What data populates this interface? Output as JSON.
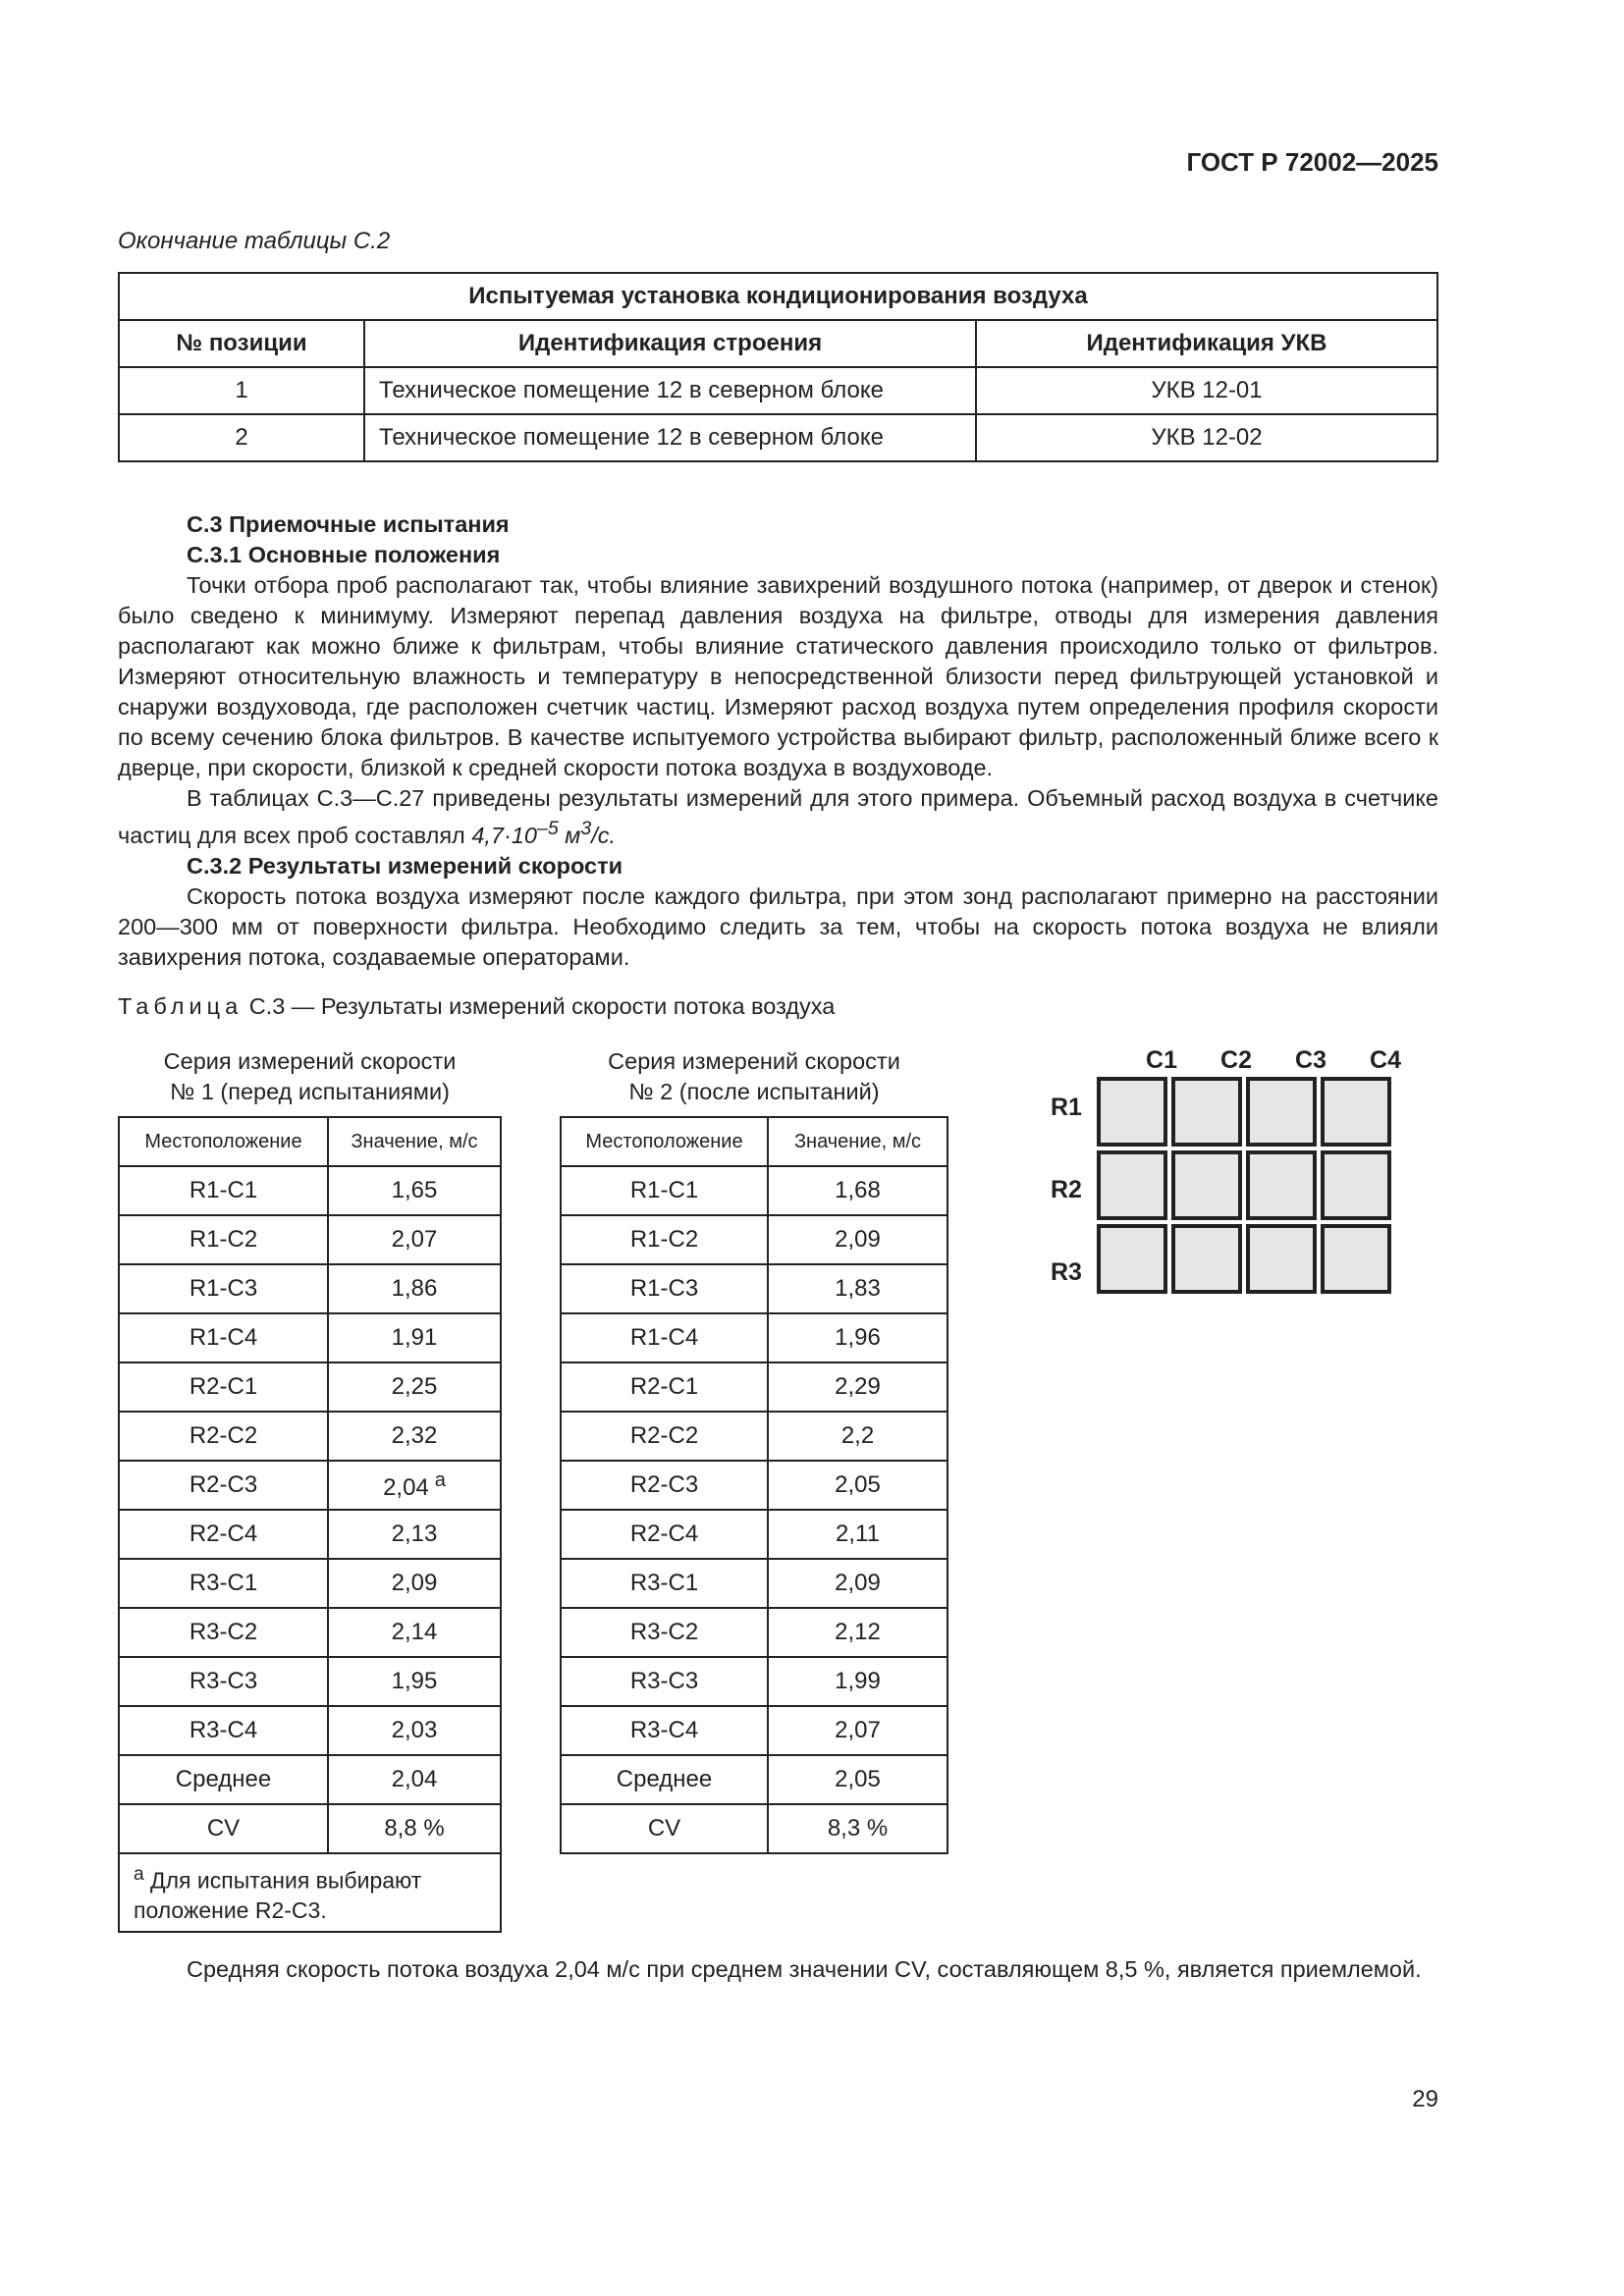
{
  "header": {
    "doc_code": "ГОСТ Р 72002—2025"
  },
  "table_c2": {
    "continuation": "Окончание таблицы С.2",
    "title": "Испытуемая установка кондиционирования воздуха",
    "columns": [
      "№ позиции",
      "Идентификация строения",
      "Идентификация УКВ"
    ],
    "rows": [
      [
        "1",
        "Техническое помещение 12 в северном блоке",
        "УКВ 12-01"
      ],
      [
        "2",
        "Техническое помещение 12 в северном блоке",
        "УКВ 12-02"
      ]
    ]
  },
  "section": {
    "h_c3": "С.3 Приемочные испытания",
    "h_c31": "С.3.1 Основные положения",
    "p1": "Точки отбора проб располагают так, чтобы влияние завихрений воздушного потока (например, от дверок и стенок) было сведено к минимуму. Измеряют перепад давления воздуха на фильтре, отводы для измерения дав­ления располагают как можно ближе к фильтрам, чтобы влияние статического давления происходило только от фильтров. Измеряют относительную влажность и температуру в непосредственной близости перед фильтрующей установкой и снаружи воздуховода, где расположен счетчик частиц. Измеряют расход воздуха путем определения профиля скорости по всему сечению блока фильтров. В качестве испытуемого устройства выбирают фильтр, рас­положенный ближе всего к дверце, при скорости, близкой к средней скорости потока воздуха в воздуховоде.",
    "p2": "В таблицах С.3—С.27 приведены результаты измерений для этого примера. Объемный расход воздуха в счетчике частиц для всех проб составлял",
    "p2_value": "4,7·10",
    "p2_exp": "–5",
    "p2_unit": "м",
    "p2_unit_exp": "3",
    "p2_unit_tail": "/с.",
    "h_c32": "С.3.2 Результаты измерений скорости",
    "p3": "Скорость потока воздуха измеряют после каждого фильтра, при этом зонд располагают примерно на рас­стоянии 200—300 мм от поверхности фильтра. Необходимо следить за тем, чтобы на скорость потока воздуха не влияли завихрения потока, создаваемые операторами."
  },
  "table_c3": {
    "caption_prefix": "Таблица",
    "caption_rest": "С.3 — Результаты измерений скорости потока воздуха",
    "series1": {
      "title1": "Серия измерений скорости",
      "title2": "№ 1 (перед испытаниями)",
      "columns": [
        "Местоположение",
        "Значение, м/с"
      ],
      "rows": [
        [
          "R1-C1",
          "1,65"
        ],
        [
          "R1-C2",
          "2,07"
        ],
        [
          "R1-C3",
          "1,86"
        ],
        [
          "R1-C4",
          "1,91"
        ],
        [
          "R2-C1",
          "2,25"
        ],
        [
          "R2-C2",
          "2,32"
        ],
        [
          "R2-C3",
          "2,04"
        ],
        [
          "R2-C4",
          "2,13"
        ],
        [
          "R3-C1",
          "2,09"
        ],
        [
          "R3-C2",
          "2,14"
        ],
        [
          "R3-C3",
          "1,95"
        ],
        [
          "R3-C4",
          "2,03"
        ],
        [
          "Среднее",
          "2,04"
        ],
        [
          "CV",
          "8,8 %"
        ]
      ],
      "footnote_mark": "a",
      "footnote": "Для испытания выбирают положение R2-C3."
    },
    "series2": {
      "title1": "Серия измерений скорости",
      "title2": "№ 2 (после испытаний)",
      "columns": [
        "Местоположение",
        "Значение, м/с"
      ],
      "rows": [
        [
          "R1-C1",
          "1,68"
        ],
        [
          "R1-C2",
          "2,09"
        ],
        [
          "R1-C3",
          "1,83"
        ],
        [
          "R1-C4",
          "1,96"
        ],
        [
          "R2-C1",
          "2,29"
        ],
        [
          "R2-C2",
          "2,2"
        ],
        [
          "R2-C3",
          "2,05"
        ],
        [
          "R2-C4",
          "2,11"
        ],
        [
          "R3-C1",
          "2,09"
        ],
        [
          "R3-C2",
          "2,12"
        ],
        [
          "R3-C3",
          "1,99"
        ],
        [
          "R3-C4",
          "2,07"
        ],
        [
          "Среднее",
          "2,05"
        ],
        [
          "CV",
          "8,3 %"
        ]
      ]
    },
    "grid": {
      "columns": [
        "C1",
        "C2",
        "C3",
        "C4"
      ],
      "rows": [
        "R1",
        "R2",
        "R3"
      ]
    }
  },
  "conclusion": "Средняя скорость потока воздуха 2,04 м/с при среднем значении CV, составляющем 8,5 %, является при­емлемой.",
  "page_number": "29"
}
